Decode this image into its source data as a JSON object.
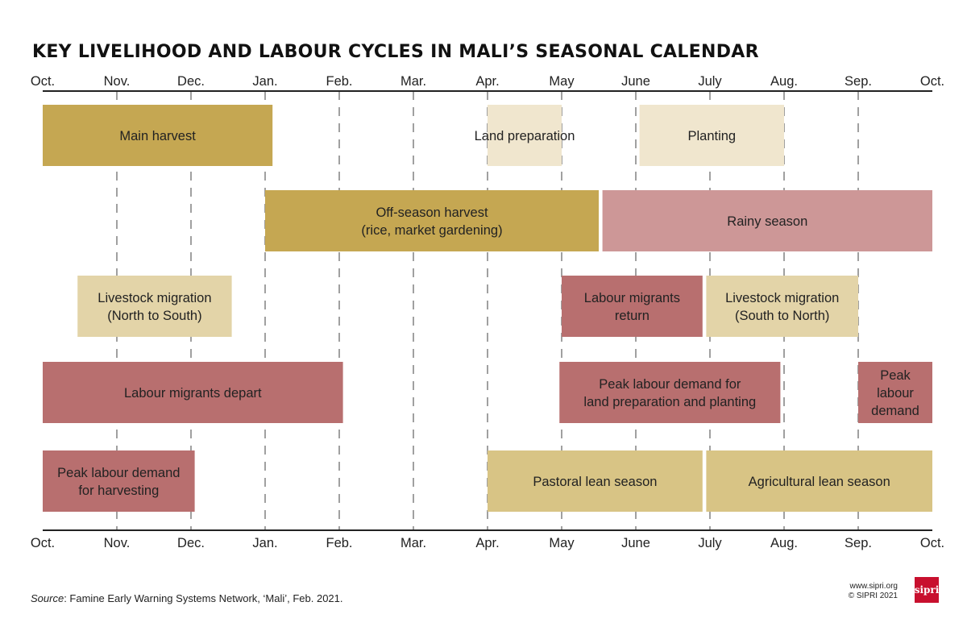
{
  "title": "KEY LIVELIHOOD AND LABOUR CYCLES IN MALI’S SEASONAL CALENDAR",
  "chart_data": {
    "type": "gantt",
    "title": "KEY LIVELIHOOD AND LABOUR CYCLES IN MALI’S SEASONAL CALENDAR",
    "axis": {
      "unit": "month (0 = October, 12 = following October)",
      "range": [
        0,
        12
      ],
      "month_labels": [
        "Oct.",
        "Nov.",
        "Dec.",
        "Jan.",
        "Feb.",
        "Mar.",
        "Apr.",
        "May",
        "June",
        "July",
        "Aug.",
        "Sep.",
        "Oct."
      ],
      "gridlines": "dashed at each month"
    },
    "colors": {
      "harvest": "#c5a752",
      "light": "#f0e6ce",
      "rainy": "#cd9797",
      "migration": "#e3d4a8",
      "labour": "#b86f6f",
      "lean": "#d8c485",
      "axis": "#222222",
      "grid": "#a0a0a0",
      "text": "#222222"
    },
    "bars": [
      {
        "row": 0,
        "start": 0,
        "end": 3.1,
        "color": "harvest",
        "lines": [
          "Main harvest"
        ]
      },
      {
        "row": 0,
        "start": 6.0,
        "end": 7.0,
        "color": "light",
        "lines": [
          "Land preparation"
        ]
      },
      {
        "row": 0,
        "start": 8.05,
        "end": 10.0,
        "color": "light",
        "lines": [
          "Planting"
        ]
      },
      {
        "row": 1,
        "start": 3.0,
        "end": 7.5,
        "color": "harvest",
        "lines": [
          "Off-season harvest",
          "(rice, market gardening)"
        ]
      },
      {
        "row": 1,
        "start": 7.55,
        "end": 12.0,
        "color": "rainy",
        "lines": [
          "Rainy season"
        ]
      },
      {
        "row": 2,
        "start": 0.47,
        "end": 2.55,
        "color": "migration",
        "lines": [
          "Livestock migration",
          "(North to South)"
        ]
      },
      {
        "row": 2,
        "start": 7.0,
        "end": 8.9,
        "color": "labour",
        "lines": [
          "Labour migrants",
          "return"
        ]
      },
      {
        "row": 2,
        "start": 8.95,
        "end": 11.0,
        "color": "migration",
        "lines": [
          "Livestock migration",
          "(South to North)"
        ]
      },
      {
        "row": 3,
        "start": 0,
        "end": 4.05,
        "color": "labour",
        "lines": [
          "Labour migrants depart"
        ]
      },
      {
        "row": 3,
        "start": 6.97,
        "end": 9.95,
        "color": "labour",
        "lines": [
          "Peak labour demand for",
          "land preparation and planting"
        ]
      },
      {
        "row": 3,
        "start": 11.0,
        "end": 12.0,
        "color": "labour",
        "lines": [
          "Peak",
          "labour",
          "demand"
        ]
      },
      {
        "row": 4,
        "start": 0,
        "end": 2.05,
        "color": "labour",
        "lines": [
          "Peak labour demand",
          "for harvesting"
        ]
      },
      {
        "row": 4,
        "start": 6.0,
        "end": 8.9,
        "color": "lean",
        "lines": [
          "Pastoral lean season"
        ]
      },
      {
        "row": 4,
        "start": 8.95,
        "end": 12.0,
        "color": "lean",
        "lines": [
          "Agricultural lean season"
        ]
      }
    ]
  },
  "footer": {
    "source_label": "Source",
    "source_text": ": Famine Early Warning Systems Network, ‘Mali’, Feb. 2021.",
    "site": "www.sipri.org",
    "copyright": "© SIPRI 2021",
    "logo_text": "sipri",
    "logo_color": "#c8102e"
  }
}
